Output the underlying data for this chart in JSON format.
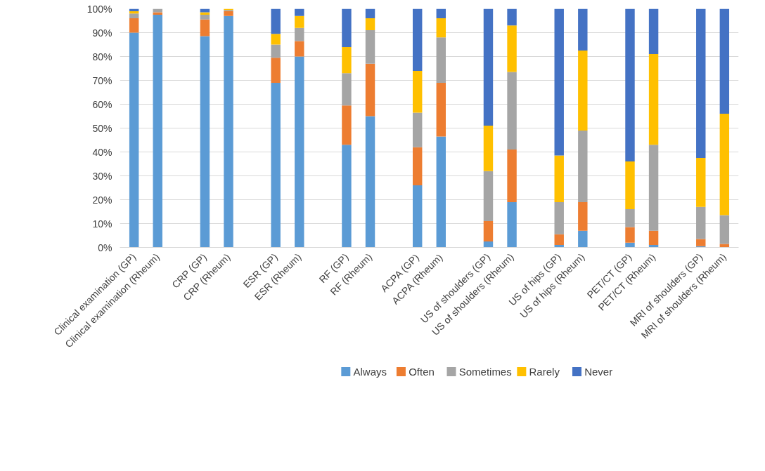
{
  "chart_data": {
    "type": "bar",
    "stacked": true,
    "categories": [
      "Clinical examination (GP)",
      "Clinical examination (Rheum)",
      null,
      "CRP (GP)",
      "CRP (Rheum)",
      null,
      "ESR (GP)",
      "ESR (Rheum)",
      null,
      "RF (GP)",
      "RF (Rheum)",
      null,
      "ACPA (GP)",
      "ACPA (Rheum)",
      null,
      "US of shoulders (GP)",
      "US of shoulders (Rheum)",
      null,
      "US of hips (GP)",
      "US of hips (Rheum)",
      null,
      "PET/CT (GP)",
      "PET/CT (Rheum)",
      null,
      "MRI of shoulders (GP)",
      "MRI of shoulders (Rheum)"
    ],
    "series": [
      {
        "name": "Always",
        "color": "#5b9bd5",
        "values": [
          90,
          97.5,
          null,
          88.5,
          97,
          null,
          69,
          80,
          null,
          43,
          55,
          null,
          26,
          46.5,
          null,
          2.5,
          19,
          null,
          1,
          7,
          null,
          2,
          1,
          null,
          0.5,
          0
        ]
      },
      {
        "name": "Often",
        "color": "#ed7d31",
        "values": [
          6,
          1,
          null,
          7,
          2,
          null,
          10.5,
          6.5,
          null,
          16.5,
          22,
          null,
          16,
          22.5,
          null,
          8.5,
          22,
          null,
          4.5,
          12,
          null,
          6.5,
          6,
          null,
          3,
          1.5
        ]
      },
      {
        "name": "Sometimes",
        "color": "#a5a5a5",
        "values": [
          2,
          1.5,
          null,
          2,
          0.5,
          null,
          5.5,
          5.5,
          null,
          13.5,
          14,
          null,
          14.5,
          19,
          null,
          21,
          32.5,
          null,
          13.5,
          30,
          null,
          7.5,
          36,
          null,
          13.5,
          12
        ]
      },
      {
        "name": "Rarely",
        "color": "#ffc000",
        "values": [
          1,
          0,
          null,
          1,
          0.5,
          null,
          4.5,
          5,
          null,
          11,
          5,
          null,
          17.5,
          8,
          null,
          19,
          19.5,
          null,
          19.5,
          33.5,
          null,
          20,
          38,
          null,
          20.5,
          42.5
        ]
      },
      {
        "name": "Never",
        "color": "#4472c4",
        "values": [
          1,
          0,
          null,
          1.5,
          0,
          null,
          10.5,
          3,
          null,
          16,
          4,
          null,
          26,
          4,
          null,
          49,
          7,
          null,
          61.5,
          17.5,
          null,
          64,
          19,
          null,
          62.5,
          44
        ]
      }
    ],
    "ylim": [
      0,
      100
    ],
    "yticks": [
      {
        "value": 0,
        "label": "0%"
      },
      {
        "value": 10,
        "label": "10%"
      },
      {
        "value": 20,
        "label": "20%"
      },
      {
        "value": 30,
        "label": "30%"
      },
      {
        "value": 40,
        "label": "40%"
      },
      {
        "value": 50,
        "label": "50%"
      },
      {
        "value": 60,
        "label": "60%"
      },
      {
        "value": 70,
        "label": "70%"
      },
      {
        "value": 80,
        "label": "80%"
      },
      {
        "value": 90,
        "label": "90%"
      },
      {
        "value": 100,
        "label": "100%"
      }
    ],
    "grid": "y",
    "legend": "bottom"
  }
}
